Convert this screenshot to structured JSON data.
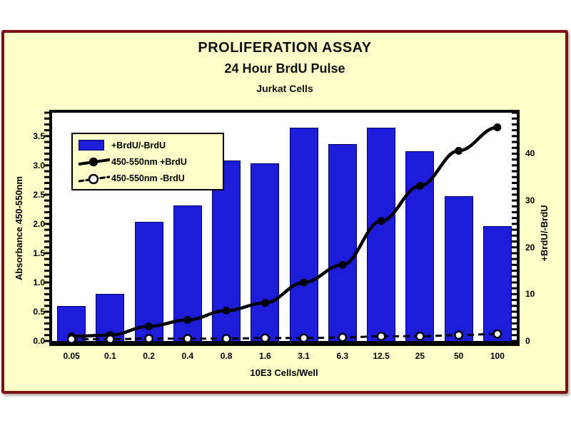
{
  "header": {
    "title": "PROLIFERATION ASSAY",
    "subtitle": "24 Hour BrdU Pulse",
    "cells": "Jurkat Cells"
  },
  "colors": {
    "card_bg": "#FFFFC9",
    "card_border": "#7B1113",
    "plot_bg": "#FFFFFF",
    "frame": "#000000",
    "bar_fill": "#1C1CD9",
    "bar_edge": "#000066",
    "line": "#000000",
    "text": "#000000"
  },
  "chart_data": {
    "type": "bar",
    "title": "PROLIFERATION ASSAY",
    "subtitle": "24 Hour BrdU Pulse",
    "subtitle2": "Jurkat Cells",
    "categories": [
      "0.05",
      "0.1",
      "0.2",
      "0.4",
      "0.8",
      "1.6",
      "3.1",
      "6.3",
      "12.5",
      "25",
      "50",
      "100"
    ],
    "xlabel": "10E3 Cells/Well",
    "left_axis": {
      "label": "Absorbance 450-550nm",
      "tick_labels": [
        "0.0",
        "0.5",
        "1.0",
        "1.5",
        "2.0",
        "2.5",
        "3.0",
        "3.5"
      ],
      "tick_values": [
        0,
        0.5,
        1.0,
        1.5,
        2.0,
        2.5,
        3.0,
        3.5
      ],
      "range": [
        0,
        3.9
      ],
      "minor_tick_step": 0.1
    },
    "right_axis": {
      "label": "+BrdU/-BrdU",
      "tick_labels": [
        "0",
        "10",
        "20",
        "30",
        "40"
      ],
      "tick_values": [
        0,
        10,
        20,
        30,
        40
      ],
      "range": [
        0,
        48.75
      ]
    },
    "grid": false,
    "legend_position": "upper-left-inside",
    "series": [
      {
        "name": "+BrdU/-BrdU",
        "type": "bar",
        "axis": "right",
        "marker": "blue-bar",
        "values": [
          7.5,
          10,
          25.5,
          29,
          38.5,
          38,
          45.5,
          42,
          45.5,
          40.5,
          31,
          24.5
        ]
      },
      {
        "name": "450-550nm +BrdU",
        "type": "line",
        "axis": "left",
        "marker": "filled-circle",
        "line_style": "solid",
        "values": [
          0.08,
          0.1,
          0.25,
          0.36,
          0.52,
          0.65,
          1.0,
          1.3,
          2.05,
          2.65,
          3.25,
          3.65
        ]
      },
      {
        "name": "450-550nm -BrdU",
        "type": "line",
        "axis": "left",
        "marker": "open-circle",
        "line_style": "dashed",
        "values": [
          0.03,
          0.03,
          0.04,
          0.04,
          0.04,
          0.05,
          0.05,
          0.06,
          0.08,
          0.08,
          0.1,
          0.12
        ]
      }
    ]
  }
}
